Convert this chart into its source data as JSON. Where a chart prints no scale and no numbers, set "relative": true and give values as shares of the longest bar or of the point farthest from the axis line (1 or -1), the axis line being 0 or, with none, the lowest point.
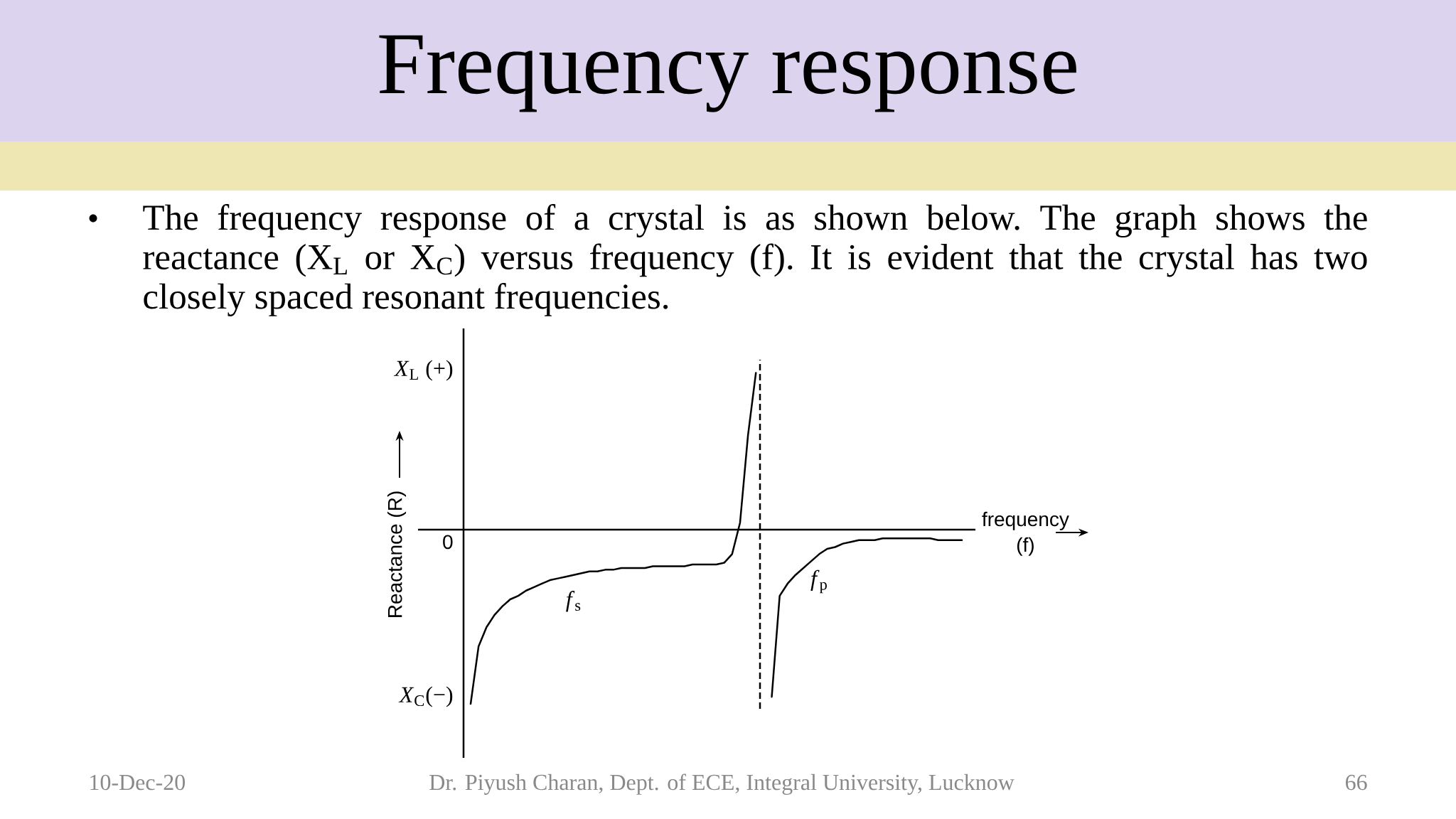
{
  "chart_data": {
    "type": "line",
    "title": "Frequency response",
    "subtitle": "The frequency response of a crystal is as shown below. The graph shows the reactance (X$_{L}$ or X$_{C}$) versus frequency (f). It is evident that the crystal has two closely spaced resonant frequencies.",
    "xlabel": "frequency (f)",
    "ylabel": "Reactance (R)",
    "relative": true,
    "categories": [
      null,
      null,
      null,
      null,
      null,
      null,
      null,
      null,
      null,
      null,
      null,
      null,
      null,
      null,
      null,
      null,
      null,
      null,
      null,
      null,
      null,
      null,
      null,
      null,
      null,
      null,
      null,
      null,
      null,
      null,
      null,
      null,
      null,
      null,
      null,
      null,
      null,
      null,
      null,
      null,
      null,
      null,
      null,
      null,
      null,
      null,
      null,
      null,
      null,
      null,
      null,
      null,
      null,
      null,
      null,
      null,
      null,
      null,
      null,
      null,
      null,
      null,
      null
    ],
    "series": [
      {
        "name": "*f*$_{s}$",
        "color": "#000000",
        "values": [
          -1.0,
          -0.67,
          -0.56,
          -0.49,
          -0.44,
          -0.4,
          -0.38,
          -0.35,
          -0.33,
          -0.31,
          -0.29,
          -0.28,
          -0.27,
          -0.26,
          -0.25,
          -0.24,
          -0.24,
          -0.23,
          -0.23,
          -0.22,
          -0.22,
          -0.22,
          -0.22,
          -0.21,
          -0.21,
          -0.21,
          -0.21,
          -0.21,
          -0.2,
          -0.2,
          -0.2,
          -0.2,
          -0.19,
          -0.14,
          0.04,
          0.54,
          0.9,
          null,
          null,
          null,
          null,
          null,
          null,
          null,
          null,
          null,
          null,
          null,
          null,
          null,
          null,
          null,
          null,
          null,
          null,
          null,
          null,
          null,
          null,
          null,
          null,
          null,
          null
        ]
      },
      {
        "name": "*f*$_{p}$",
        "color": "#000000",
        "values": [
          null,
          null,
          null,
          null,
          null,
          null,
          null,
          null,
          null,
          null,
          null,
          null,
          null,
          null,
          null,
          null,
          null,
          null,
          null,
          null,
          null,
          null,
          null,
          null,
          null,
          null,
          null,
          null,
          null,
          null,
          null,
          null,
          null,
          null,
          null,
          null,
          null,
          null,
          -0.96,
          -0.38,
          -0.31,
          -0.26,
          -0.22,
          -0.18,
          -0.14,
          -0.11,
          -0.1,
          -0.08,
          -0.07,
          -0.06,
          -0.06,
          -0.06,
          -0.05,
          -0.05,
          -0.05,
          -0.05,
          -0.05,
          -0.05,
          -0.05,
          -0.06,
          -0.06,
          -0.06,
          -0.06
        ]
      }
    ],
    "annotations": [
      "*X*$_{L}$ (+)",
      "0",
      "*X*$_{C}$(−)",
      "10-Dec-20",
      "Dr. Piyush Charan, Dept. of ECE, Integral University, Lucknow",
      "66"
    ]
  }
}
